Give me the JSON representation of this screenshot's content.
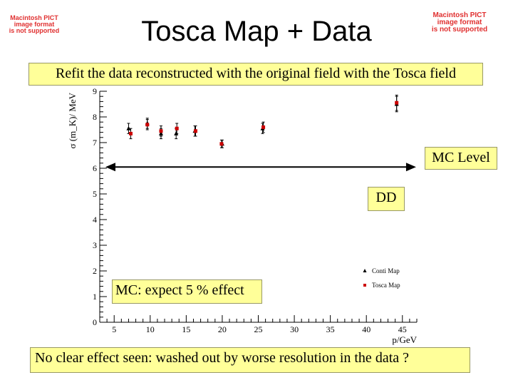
{
  "title": "Tosca Map + Data",
  "pict_placeholder": {
    "lines": [
      "Macintosh PICT",
      "image format",
      "is not supported"
    ]
  },
  "annotations": {
    "refit": "Refit the data reconstructed with the original field with the Tosca field",
    "mc_level": "MC Level",
    "dd": "DD",
    "mc_expect": "MC: expect 5 % effect",
    "conclusion": "No clear effect seen: washed out by worse resolution in the data ?"
  },
  "colors": {
    "tosca_map": "#cc0000",
    "conti_map": "#000000",
    "box_fill": "#ffff99",
    "pict_text": "#e03030"
  },
  "chart_data": {
    "type": "scatter",
    "xlabel": "p/GeV",
    "ylabel": "σ (m_K)/ MeV",
    "xlim": [
      3,
      47
    ],
    "ylim": [
      0,
      9
    ],
    "x_ticks": [
      5,
      10,
      15,
      20,
      25,
      30,
      35,
      40,
      45
    ],
    "y_ticks": [
      0,
      1,
      2,
      3,
      4,
      5,
      6,
      7,
      8,
      9
    ],
    "grid": false,
    "legend_position": "bottom-right",
    "series": [
      {
        "name": "Conti Map",
        "marker": "triangle",
        "color": "#000000",
        "points": [
          {
            "x": 7.0,
            "y": 7.55,
            "err": 0.2
          },
          {
            "x": 9.6,
            "y": 7.75,
            "err": 0.2
          },
          {
            "x": 11.5,
            "y": 7.35,
            "err": 0.2
          },
          {
            "x": 13.6,
            "y": 7.35,
            "err": 0.2
          },
          {
            "x": 16.2,
            "y": 7.45,
            "err": 0.2
          },
          {
            "x": 20.0,
            "y": 6.95,
            "err": 0.15
          },
          {
            "x": 25.6,
            "y": 7.55,
            "err": 0.2
          },
          {
            "x": 44.2,
            "y": 8.5,
            "err": 0.3
          }
        ]
      },
      {
        "name": "Tosca Map",
        "marker": "square",
        "color": "#cc0000",
        "points": [
          {
            "x": 7.3,
            "y": 7.35,
            "err": 0.2
          },
          {
            "x": 9.6,
            "y": 7.7,
            "err": 0.2
          },
          {
            "x": 11.5,
            "y": 7.45,
            "err": 0.2
          },
          {
            "x": 13.7,
            "y": 7.55,
            "err": 0.2
          },
          {
            "x": 16.3,
            "y": 7.45,
            "err": 0.2
          },
          {
            "x": 19.9,
            "y": 6.95,
            "err": 0.15
          },
          {
            "x": 25.7,
            "y": 7.6,
            "err": 0.2
          },
          {
            "x": 44.2,
            "y": 8.55,
            "err": 0.3
          }
        ]
      }
    ],
    "mc_level_arrow": {
      "y": 6.05,
      "x_from": 3,
      "x_to": 46.5
    }
  }
}
